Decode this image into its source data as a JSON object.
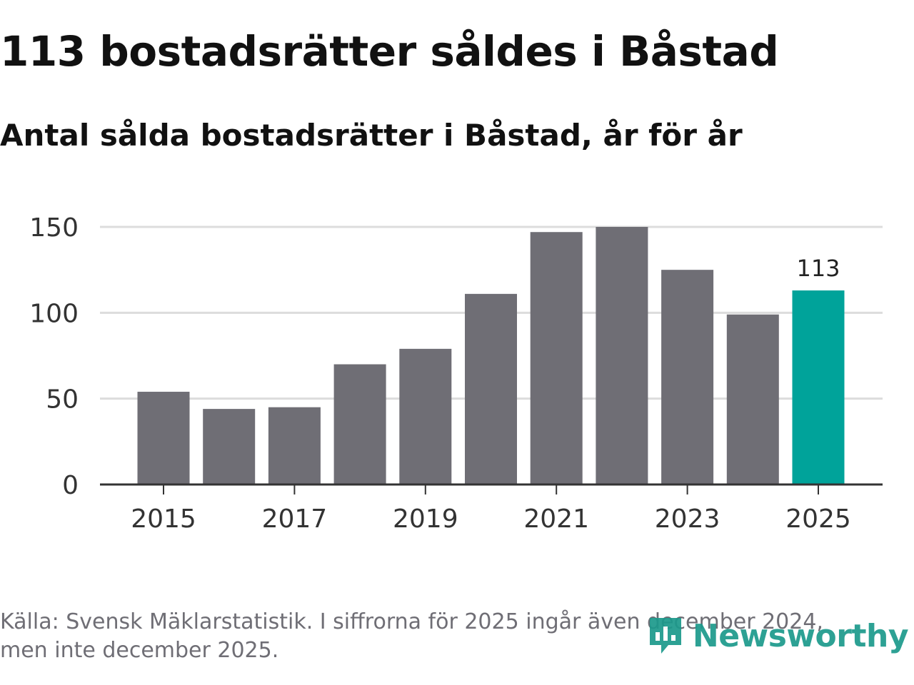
{
  "header": {
    "title": "113 bostadsrätter såldes i Båstad",
    "subtitle": "Antal sålda bostadsrätter i Båstad, år för år"
  },
  "chart_data": {
    "type": "bar",
    "title": "113 bostadsrätter såldes i Båstad",
    "subtitle": "Antal sålda bostadsrätter i Båstad, år för år",
    "categories": [
      "2015",
      "2016",
      "2017",
      "2018",
      "2019",
      "2020",
      "2021",
      "2022",
      "2023",
      "2024",
      "2025"
    ],
    "values": [
      54,
      44,
      45,
      70,
      79,
      111,
      147,
      150,
      125,
      99,
      113
    ],
    "x_tick_labels": [
      "2015",
      "2017",
      "2019",
      "2021",
      "2023",
      "2025"
    ],
    "y_ticks": [
      0,
      50,
      100,
      150
    ],
    "ylim": [
      0,
      150
    ],
    "xlabel": "",
    "ylabel": "",
    "grid": true,
    "highlight_index": 10,
    "highlight_label": "113",
    "colors": {
      "bar": "#6f6e75",
      "highlight": "#00a39a",
      "grid": "#dcdcdc",
      "axis": "#333333"
    }
  },
  "footer": {
    "source_line1": "Källa: Svensk Mäklarstatistik. I siffrorna för 2025 ingår även december 2024,",
    "source_line2": "men inte december 2025."
  },
  "brand": {
    "name": "Newsworthy",
    "logo_icon": "newsworthy-logo-icon",
    "color": "#1c9a8c"
  }
}
